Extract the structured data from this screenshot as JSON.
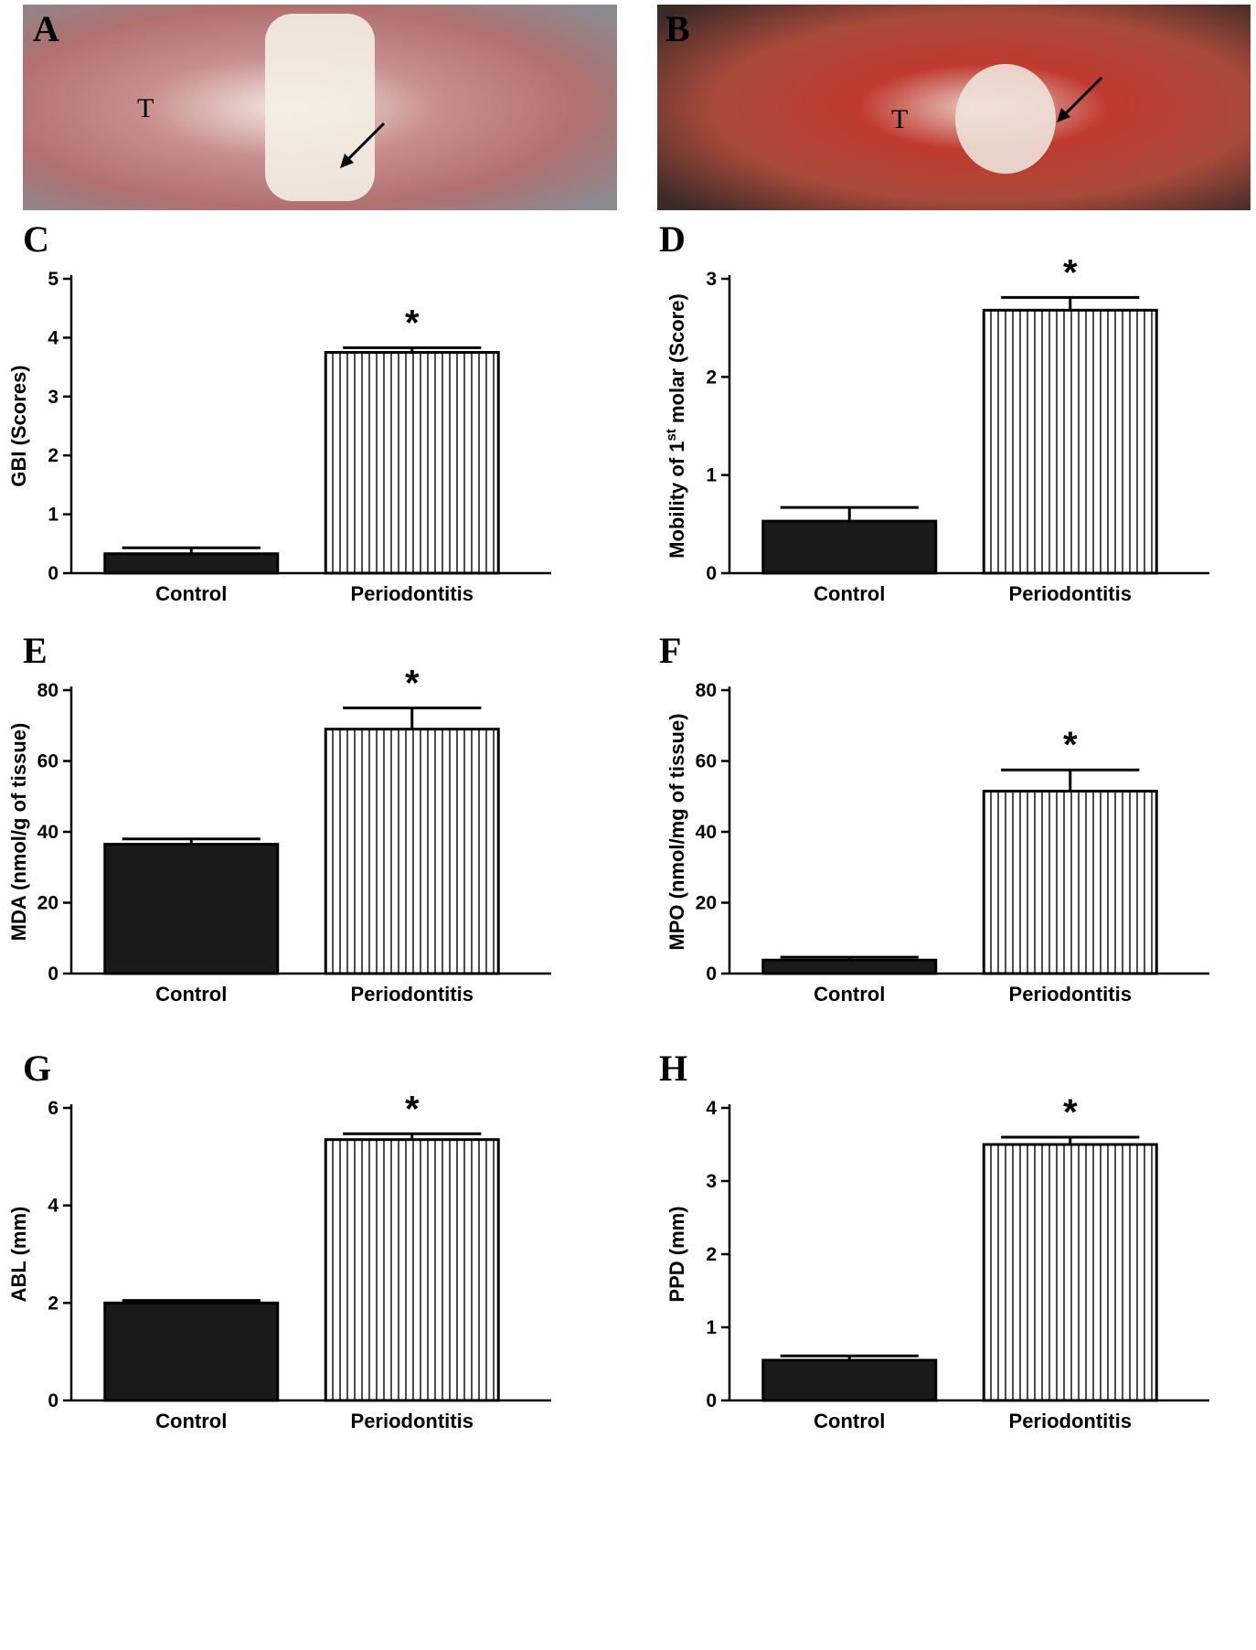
{
  "photos": [
    {
      "label": "A",
      "annotation": "T"
    },
    {
      "label": "B",
      "annotation": "T"
    }
  ],
  "chart_data": [
    {
      "type": "bar",
      "panel": "C",
      "ylabel": "GBI (Scores)",
      "categories": [
        "Control",
        "Periodontitis"
      ],
      "values": [
        0.33,
        3.75
      ],
      "errors": [
        0.1,
        0.08
      ],
      "fills": [
        "#1a1a1a",
        "#ffffff"
      ],
      "hatch": [
        false,
        true
      ],
      "ylim": [
        0,
        5
      ],
      "yticks": [
        0,
        1,
        2,
        3,
        4,
        5
      ],
      "annotation": "*"
    },
    {
      "type": "bar",
      "panel": "D",
      "ylabel": "Mobility of 1",
      "ylabel_superscript": "st",
      "ylabel_suffix": " molar (Score)",
      "categories": [
        "Control",
        "Periodontitis"
      ],
      "values": [
        0.53,
        2.68
      ],
      "errors": [
        0.14,
        0.13
      ],
      "fills": [
        "#1a1a1a",
        "#ffffff"
      ],
      "hatch": [
        false,
        true
      ],
      "ylim": [
        0,
        3
      ],
      "yticks": [
        0,
        1,
        2,
        3
      ],
      "annotation": "*"
    },
    {
      "type": "bar",
      "panel": "E",
      "ylabel": "MDA (nmol/g of tissue)",
      "categories": [
        "Control",
        "Periodontitis"
      ],
      "values": [
        36.5,
        69
      ],
      "errors": [
        1.5,
        6
      ],
      "fills": [
        "#1a1a1a",
        "#ffffff"
      ],
      "hatch": [
        false,
        true
      ],
      "ylim": [
        0,
        80
      ],
      "yticks": [
        0,
        20,
        40,
        60,
        80
      ],
      "annotation": "*"
    },
    {
      "type": "bar",
      "panel": "F",
      "ylabel": "MPO (nmol/mg of tissue)",
      "categories": [
        "Control",
        "Periodontitis"
      ],
      "values": [
        3.8,
        51.5
      ],
      "errors": [
        0.8,
        6
      ],
      "fills": [
        "#1a1a1a",
        "#ffffff"
      ],
      "hatch": [
        false,
        true
      ],
      "ylim": [
        0,
        80
      ],
      "yticks": [
        0,
        20,
        40,
        60,
        80
      ],
      "annotation": "*"
    },
    {
      "type": "bar",
      "panel": "G",
      "ylabel": "ABL (mm)",
      "categories": [
        "Control",
        "Periodontitis"
      ],
      "values": [
        2.0,
        5.35
      ],
      "errors": [
        0.05,
        0.12
      ],
      "fills": [
        "#1a1a1a",
        "#ffffff"
      ],
      "hatch": [
        false,
        true
      ],
      "ylim": [
        0,
        6
      ],
      "yticks": [
        0,
        2,
        4,
        6
      ],
      "annotation": "*"
    },
    {
      "type": "bar",
      "panel": "H",
      "ylabel": "PPD (mm)",
      "categories": [
        "Control",
        "Periodontitis"
      ],
      "values": [
        0.55,
        3.5
      ],
      "errors": [
        0.06,
        0.1
      ],
      "fills": [
        "#1a1a1a",
        "#ffffff"
      ],
      "hatch": [
        false,
        true
      ],
      "ylim": [
        0,
        4
      ],
      "yticks": [
        0,
        1,
        2,
        3,
        4
      ],
      "annotation": "*"
    }
  ]
}
